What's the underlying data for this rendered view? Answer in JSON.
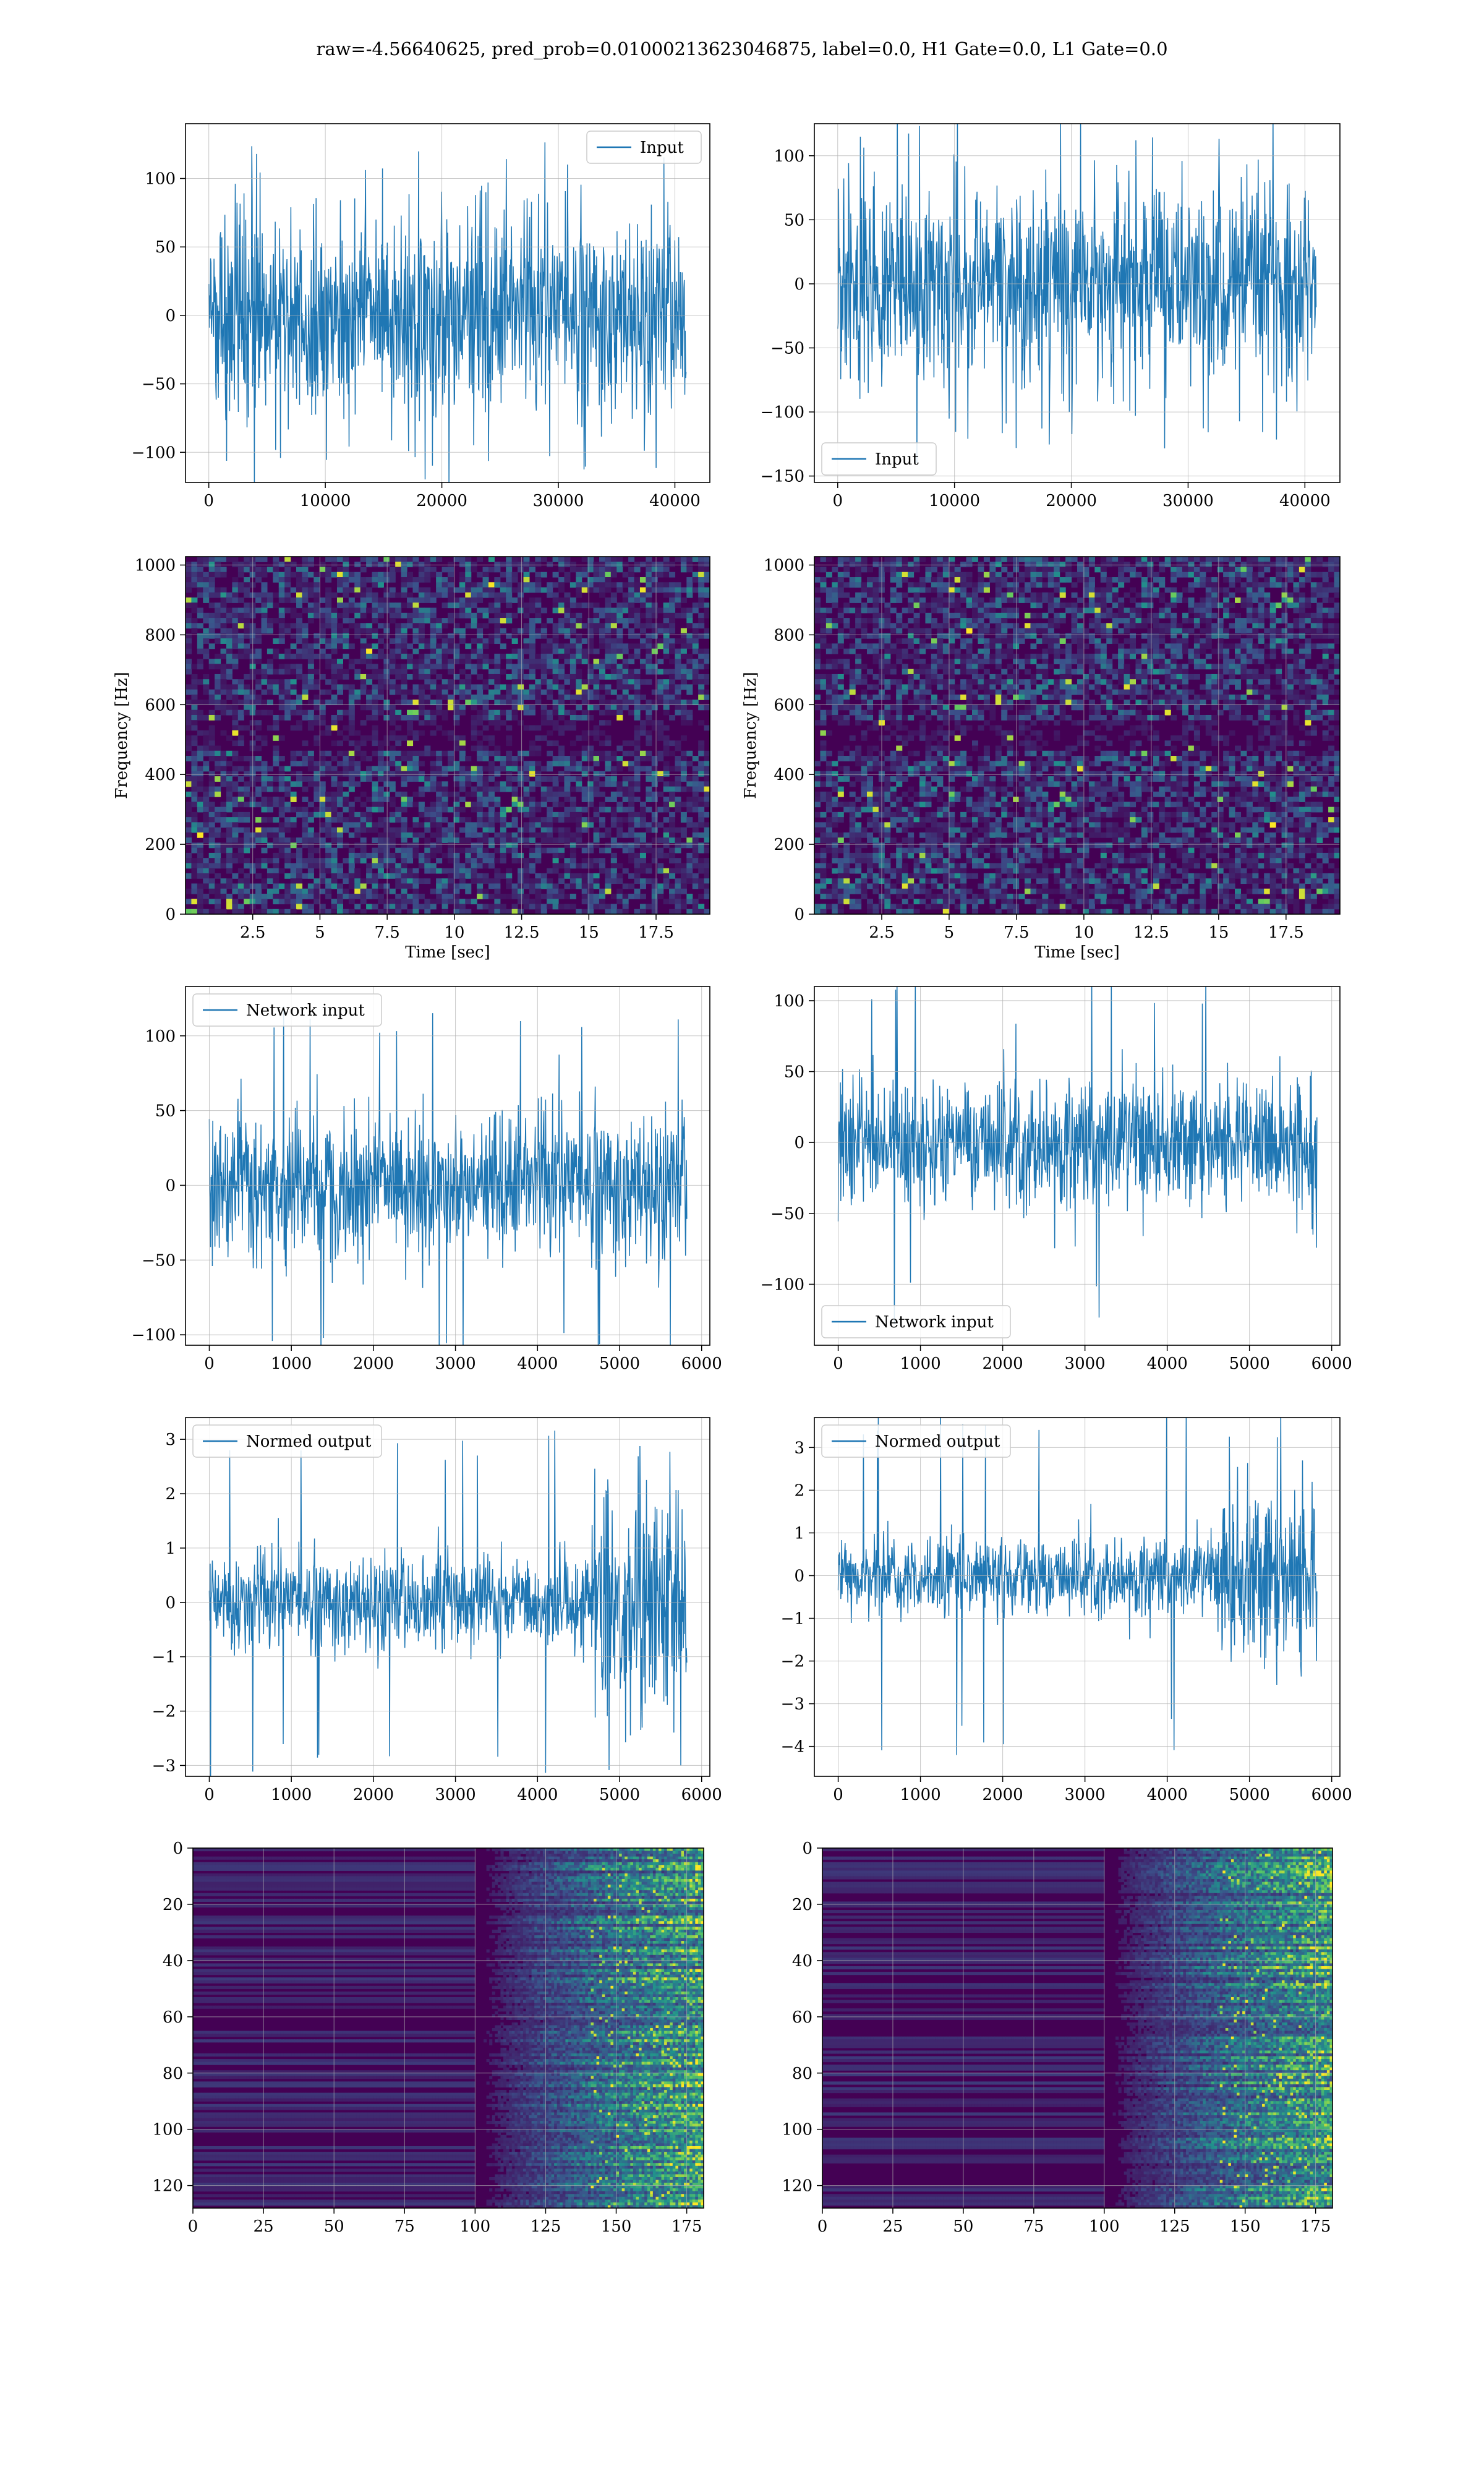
{
  "title": "raw=-4.56640625, pred_prob=0.01000213623046875, label=0.0, H1 Gate=0.0, L1 Gate=0.0",
  "colors": {
    "line": "#1f77b4",
    "grid": "#b0b0b0",
    "viridis_dark": "#440154",
    "viridis_mid": "#21918c",
    "viridis_bright": "#fde725"
  },
  "chart_data": [
    {
      "id": "r1c1",
      "type": "line",
      "legend": "Input",
      "legend_loc": "upper right",
      "xlim": [
        -2000,
        43000
      ],
      "ylim": [
        -122,
        140
      ],
      "xticks": [
        0,
        10000,
        20000,
        30000,
        40000
      ],
      "yticks": [
        -100,
        -50,
        0,
        50,
        100
      ],
      "series": [
        {
          "name": "Input",
          "x_range": [
            0,
            40960
          ],
          "core_abs": 65,
          "peak_abs": 130,
          "grid": "on"
        }
      ]
    },
    {
      "id": "r1c2",
      "type": "line",
      "legend": "Input",
      "legend_loc": "lower left",
      "xlim": [
        -2000,
        43000
      ],
      "ylim": [
        -155,
        125
      ],
      "xticks": [
        0,
        10000,
        20000,
        30000,
        40000
      ],
      "yticks": [
        -150,
        -100,
        -50,
        0,
        50,
        100
      ],
      "series": [
        {
          "name": "Input",
          "x_range": [
            0,
            40960
          ],
          "core_abs": 70,
          "peak_abs": 140
        }
      ]
    },
    {
      "id": "r2c1",
      "type": "heatmap",
      "ylabel": "Frequency [Hz]",
      "xlabel": "Time [sec]",
      "xlim": [
        0,
        19.5
      ],
      "ylim": [
        0,
        1024
      ],
      "xticks": [
        2.5,
        5.0,
        7.5,
        10.0,
        12.5,
        15.0,
        17.5
      ],
      "yticks": [
        0,
        200,
        400,
        600,
        800,
        1000
      ]
    },
    {
      "id": "r2c2",
      "type": "heatmap",
      "ylabel": "Frequency [Hz]",
      "xlabel": "Time [sec]",
      "xlim": [
        0,
        19.5
      ],
      "ylim": [
        0,
        1024
      ],
      "xticks": [
        2.5,
        5.0,
        7.5,
        10.0,
        12.5,
        15.0,
        17.5
      ],
      "yticks": [
        0,
        200,
        400,
        600,
        800,
        1000
      ]
    },
    {
      "id": "r3c1",
      "type": "line",
      "legend": "Network input",
      "legend_loc": "upper left",
      "xlim": [
        -290,
        6100
      ],
      "ylim": [
        -107,
        133
      ],
      "xticks": [
        0,
        1000,
        2000,
        3000,
        4000,
        5000,
        6000
      ],
      "yticks": [
        -100,
        -50,
        0,
        50,
        100
      ],
      "series": [
        {
          "name": "Network input",
          "x_range": [
            0,
            5820
          ],
          "core_abs": 45,
          "peak_abs": 125
        }
      ]
    },
    {
      "id": "r3c2",
      "type": "line",
      "legend": "Network input",
      "legend_loc": "lower left",
      "xlim": [
        -290,
        6100
      ],
      "ylim": [
        -143,
        110
      ],
      "xticks": [
        0,
        1000,
        2000,
        3000,
        4000,
        5000,
        6000
      ],
      "yticks": [
        -100,
        -50,
        0,
        50,
        100
      ],
      "series": [
        {
          "name": "Network input",
          "x_range": [
            0,
            5820
          ],
          "core_abs": 40,
          "peak_abs": 130
        }
      ]
    },
    {
      "id": "r4c1",
      "type": "line",
      "legend": "Normed output",
      "legend_loc": "upper left",
      "xlim": [
        -290,
        6100
      ],
      "ylim": [
        -3.2,
        3.4
      ],
      "xticks": [
        0,
        1000,
        2000,
        3000,
        4000,
        5000,
        6000
      ],
      "yticks": [
        -3,
        -2,
        -1,
        0,
        1,
        2,
        3
      ],
      "series": [
        {
          "name": "Normed output",
          "x_range": [
            0,
            5820
          ],
          "core_abs": 0.8,
          "peak_abs": 3.3
        }
      ]
    },
    {
      "id": "r4c2",
      "type": "line",
      "legend": "Normed output",
      "legend_loc": "upper left",
      "xlim": [
        -290,
        6100
      ],
      "ylim": [
        -4.7,
        3.7
      ],
      "xticks": [
        0,
        1000,
        2000,
        3000,
        4000,
        5000,
        6000
      ],
      "yticks": [
        -4,
        -3,
        -2,
        -1,
        0,
        1,
        2,
        3
      ],
      "series": [
        {
          "name": "Normed output",
          "x_range": [
            0,
            5820
          ],
          "core_abs": 0.8,
          "peak_abs": 4.3
        }
      ]
    },
    {
      "id": "r5c1",
      "type": "heatmap",
      "xlim": [
        0,
        181
      ],
      "ylim": [
        128,
        0
      ],
      "xticks": [
        0,
        25,
        50,
        75,
        100,
        125,
        150,
        175
      ],
      "yticks": [
        0,
        20,
        40,
        60,
        80,
        100,
        120
      ]
    },
    {
      "id": "r5c2",
      "type": "heatmap",
      "xlim": [
        0,
        181
      ],
      "ylim": [
        128,
        0
      ],
      "xticks": [
        0,
        25,
        50,
        75,
        100,
        125,
        150,
        175
      ],
      "yticks": [
        0,
        20,
        40,
        60,
        80,
        100,
        120
      ]
    }
  ]
}
